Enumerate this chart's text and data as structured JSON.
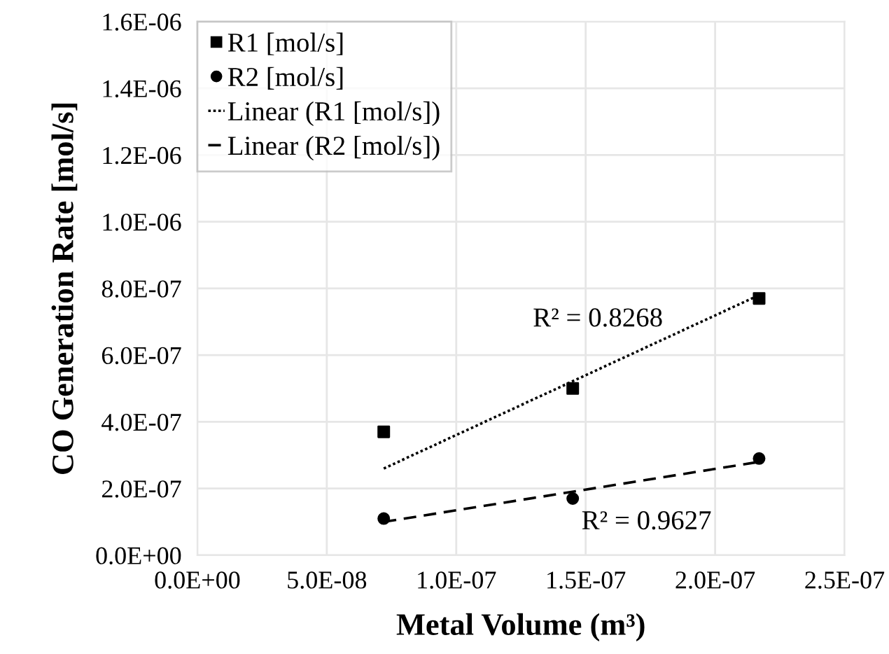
{
  "chart_data": {
    "type": "scatter",
    "xlabel": "Metal Volume (m³)",
    "ylabel": "CO Generation Rate [mol/s]",
    "xlim": [
      0,
      2.5e-07
    ],
    "ylim": [
      0,
      1.6e-06
    ],
    "xticks": [
      {
        "value": 0,
        "label": "0.0E+00"
      },
      {
        "value": 5e-08,
        "label": "5.0E-08"
      },
      {
        "value": 1e-07,
        "label": "1.0E-07"
      },
      {
        "value": 1.5e-07,
        "label": "1.5E-07"
      },
      {
        "value": 2e-07,
        "label": "2.0E-07"
      },
      {
        "value": 2.5e-07,
        "label": "2.5E-07"
      }
    ],
    "yticks": [
      {
        "value": 0,
        "label": "0.0E+00"
      },
      {
        "value": 2e-07,
        "label": "2.0E-07"
      },
      {
        "value": 4e-07,
        "label": "4.0E-07"
      },
      {
        "value": 6e-07,
        "label": "6.0E-07"
      },
      {
        "value": 8e-07,
        "label": "8.0E-07"
      },
      {
        "value": 1e-06,
        "label": "1.0E-06"
      },
      {
        "value": 1.2e-06,
        "label": "1.2E-06"
      },
      {
        "value": 1.4e-06,
        "label": "1.4E-06"
      },
      {
        "value": 1.6e-06,
        "label": "1.6E-06"
      }
    ],
    "grid": true,
    "legend": "top left",
    "series": [
      {
        "name": "R1 [mol/s]",
        "marker": "square",
        "color": "#000000",
        "x": [
          7.2e-08,
          1.45e-07,
          2.17e-07
        ],
        "values": [
          3.7e-07,
          5e-07,
          7.7e-07
        ]
      },
      {
        "name": "R2 [mol/s]",
        "marker": "circle",
        "color": "#000000",
        "x": [
          7.2e-08,
          1.45e-07,
          2.17e-07
        ],
        "values": [
          1.1e-07,
          1.7e-07,
          2.9e-07
        ]
      },
      {
        "name": "Linear (R1 [mol/s])",
        "type": "line",
        "line_style": "dotted",
        "color": "#000000",
        "x": [
          7.2e-08,
          2.17e-07
        ],
        "values": [
          2.6e-07,
          7.8e-07
        ]
      },
      {
        "name": "Linear (R2 [mol/s])",
        "type": "line",
        "line_style": "dashed",
        "color": "#000000",
        "x": [
          7.2e-08,
          2.17e-07
        ],
        "values": [
          1e-07,
          2.8e-07
        ]
      }
    ],
    "annotations": [
      "R² = 0.8268",
      "R² = 0.9627"
    ]
  }
}
